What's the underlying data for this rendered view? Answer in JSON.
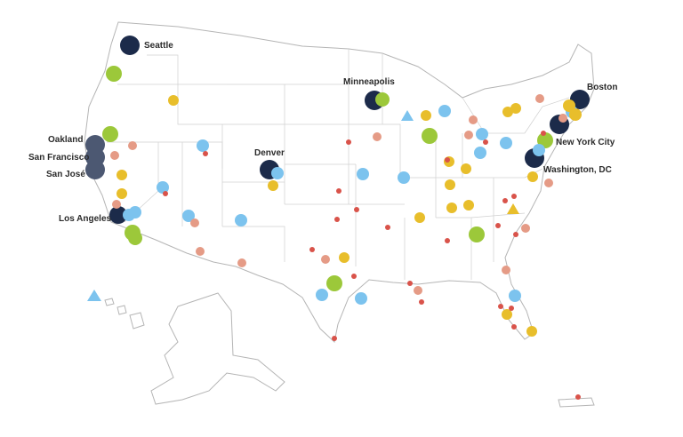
{
  "colors": {
    "navy": "#1c2b4a",
    "slate": "#4c5872",
    "green": "#9cc83a",
    "blue": "#7cc3ee",
    "yellow": "#e8be2b",
    "salmon": "#e59b86",
    "red": "#d9534a"
  },
  "cities": [
    {
      "name": "Seattle",
      "label": "Seattle"
    },
    {
      "name": "Minneapolis",
      "label": "Minneapolis"
    },
    {
      "name": "Boston",
      "label": "Boston"
    },
    {
      "name": "Oakland",
      "label": "Oakland"
    },
    {
      "name": "San Francisco",
      "label": "San Francisco"
    },
    {
      "name": "San Jose",
      "label": "San José"
    },
    {
      "name": "Denver",
      "label": "Denver"
    },
    {
      "name": "New York City",
      "label": "New York City"
    },
    {
      "name": "Washington DC",
      "label": "Washington, DC"
    },
    {
      "name": "Los Angeles",
      "label": "Los Angeles"
    }
  ]
}
